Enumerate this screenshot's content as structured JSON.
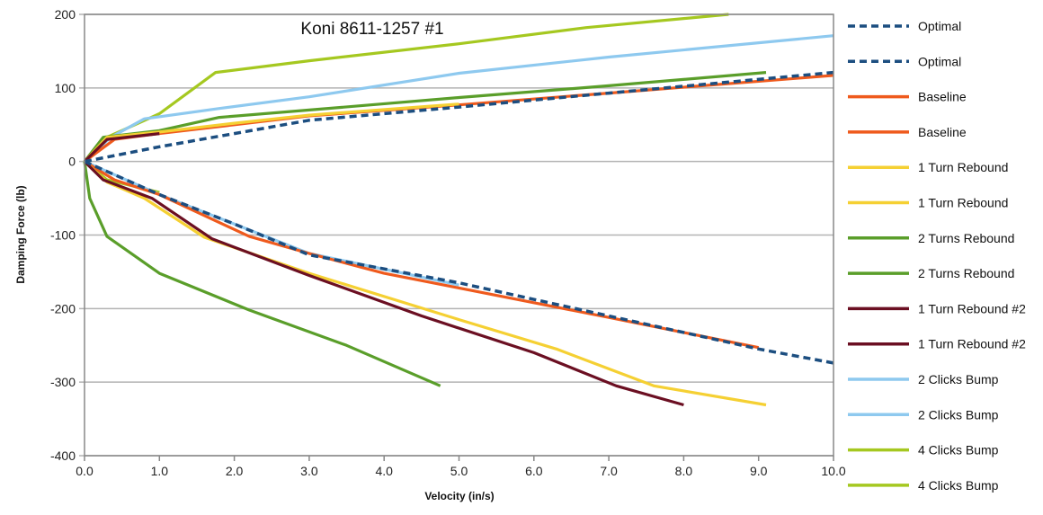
{
  "chart_data": {
    "type": "line",
    "title": "Koni 8611-1257 #1",
    "xlabel": "Velocity (in/s)",
    "ylabel": "Damping Force (lb)",
    "xlim": [
      0,
      10
    ],
    "ylim": [
      -400,
      200
    ],
    "xticks": [
      "0.0",
      "1.0",
      "2.0",
      "3.0",
      "4.0",
      "5.0",
      "6.0",
      "7.0",
      "8.0",
      "9.0",
      "10.0"
    ],
    "xtick_values": [
      0,
      1,
      2,
      3,
      4,
      5,
      6,
      7,
      8,
      9,
      10
    ],
    "yticks": [
      "200",
      "100",
      "0",
      "-100",
      "-200",
      "-300",
      "-400"
    ],
    "ytick_values": [
      200,
      100,
      0,
      -100,
      -200,
      -300,
      -400
    ],
    "grid": "horizontal",
    "legend_position": "right",
    "series": [
      {
        "name": "Optimal",
        "color": "#1c4e80",
        "dashed": true,
        "x": [
          0,
          1,
          2,
          3,
          5,
          7,
          10
        ],
        "y": [
          0,
          20,
          38,
          56,
          74,
          93,
          121
        ]
      },
      {
        "name": "Optimal",
        "color": "#1c4e80",
        "dashed": true,
        "x": [
          0,
          1,
          2,
          3,
          5,
          7,
          9,
          10
        ],
        "y": [
          0,
          -45,
          -85,
          -127,
          -165,
          -210,
          -255,
          -274
        ]
      },
      {
        "name": "Baseline",
        "color": "#ef5a1d",
        "dashed": false,
        "x": [
          0,
          0.4,
          1,
          2,
          3,
          5,
          7,
          10
        ],
        "y": [
          0,
          30,
          38,
          50,
          62,
          77,
          93,
          117
        ]
      },
      {
        "name": "Baseline",
        "color": "#ef5a1d",
        "dashed": false,
        "x": [
          0,
          0.4,
          1,
          2.2,
          3,
          4,
          5,
          7,
          9
        ],
        "y": [
          0,
          -25,
          -45,
          -102,
          -125,
          -152,
          -172,
          -212,
          -253
        ]
      },
      {
        "name": "1 Turn Rebound",
        "color": "#f5d033",
        "dashed": false,
        "x": [
          0,
          0.3,
          1,
          2,
          3,
          5
        ],
        "y": [
          0,
          33,
          40,
          52,
          63,
          78
        ]
      },
      {
        "name": "1 Turn Rebound",
        "color": "#f5d033",
        "dashed": false,
        "x": [
          0,
          0.3,
          0.8,
          1.6,
          3,
          5,
          6.3,
          7.6,
          9.1
        ],
        "y": [
          0,
          -28,
          -50,
          -103,
          -152,
          -215,
          -255,
          -305,
          -331
        ]
      },
      {
        "name": "2 Turns Rebound",
        "color": "#5a9e2a",
        "dashed": false,
        "x": [
          0,
          0.25,
          1,
          1.8,
          3,
          5,
          7,
          9.1
        ],
        "y": [
          0,
          33,
          42,
          60,
          70,
          87,
          103,
          121
        ]
      },
      {
        "name": "2 Turns Rebound",
        "color": "#5a9e2a",
        "dashed": false,
        "x": [
          0,
          0.07,
          0.3,
          1,
          2.2,
          3.5,
          4.75
        ],
        "y": [
          0,
          -50,
          -102,
          -152,
          -202,
          -250,
          -305
        ]
      },
      {
        "name": "1 Turn Rebound #2",
        "color": "#6b0f22",
        "dashed": false,
        "x": [
          0,
          0.3,
          1
        ],
        "y": [
          0,
          30,
          38
        ]
      },
      {
        "name": "1 Turn Rebound #2",
        "color": "#6b0f22",
        "dashed": false,
        "x": [
          0,
          0.25,
          0.9,
          1.7,
          3,
          4.5,
          6,
          7.1,
          8
        ],
        "y": [
          0,
          -25,
          -50,
          -105,
          -155,
          -210,
          -260,
          -305,
          -331
        ]
      },
      {
        "name": "2 Clicks Bump",
        "color": "#8ec9ef",
        "dashed": false,
        "x": [
          0,
          0.35,
          0.8,
          1.8,
          3,
          5,
          7,
          10
        ],
        "y": [
          0,
          33,
          58,
          72,
          88,
          120,
          142,
          171
        ]
      },
      {
        "name": "2 Clicks Bump",
        "color": "#8ec9ef",
        "dashed": false,
        "x": [
          0,
          1,
          3,
          5
        ],
        "y": [
          0,
          -45,
          -125,
          -168
        ]
      },
      {
        "name": "4 Clicks Bump",
        "color": "#a5c820",
        "dashed": false,
        "x": [
          0,
          0.3,
          1,
          1.75,
          3,
          5,
          6.7,
          8.6
        ],
        "y": [
          0,
          33,
          65,
          121,
          137,
          160,
          182,
          200
        ]
      },
      {
        "name": "4 Clicks Bump",
        "color": "#a5c820",
        "dashed": false,
        "x": [
          0,
          0.3,
          1
        ],
        "y": [
          0,
          -25,
          -42
        ]
      }
    ]
  }
}
